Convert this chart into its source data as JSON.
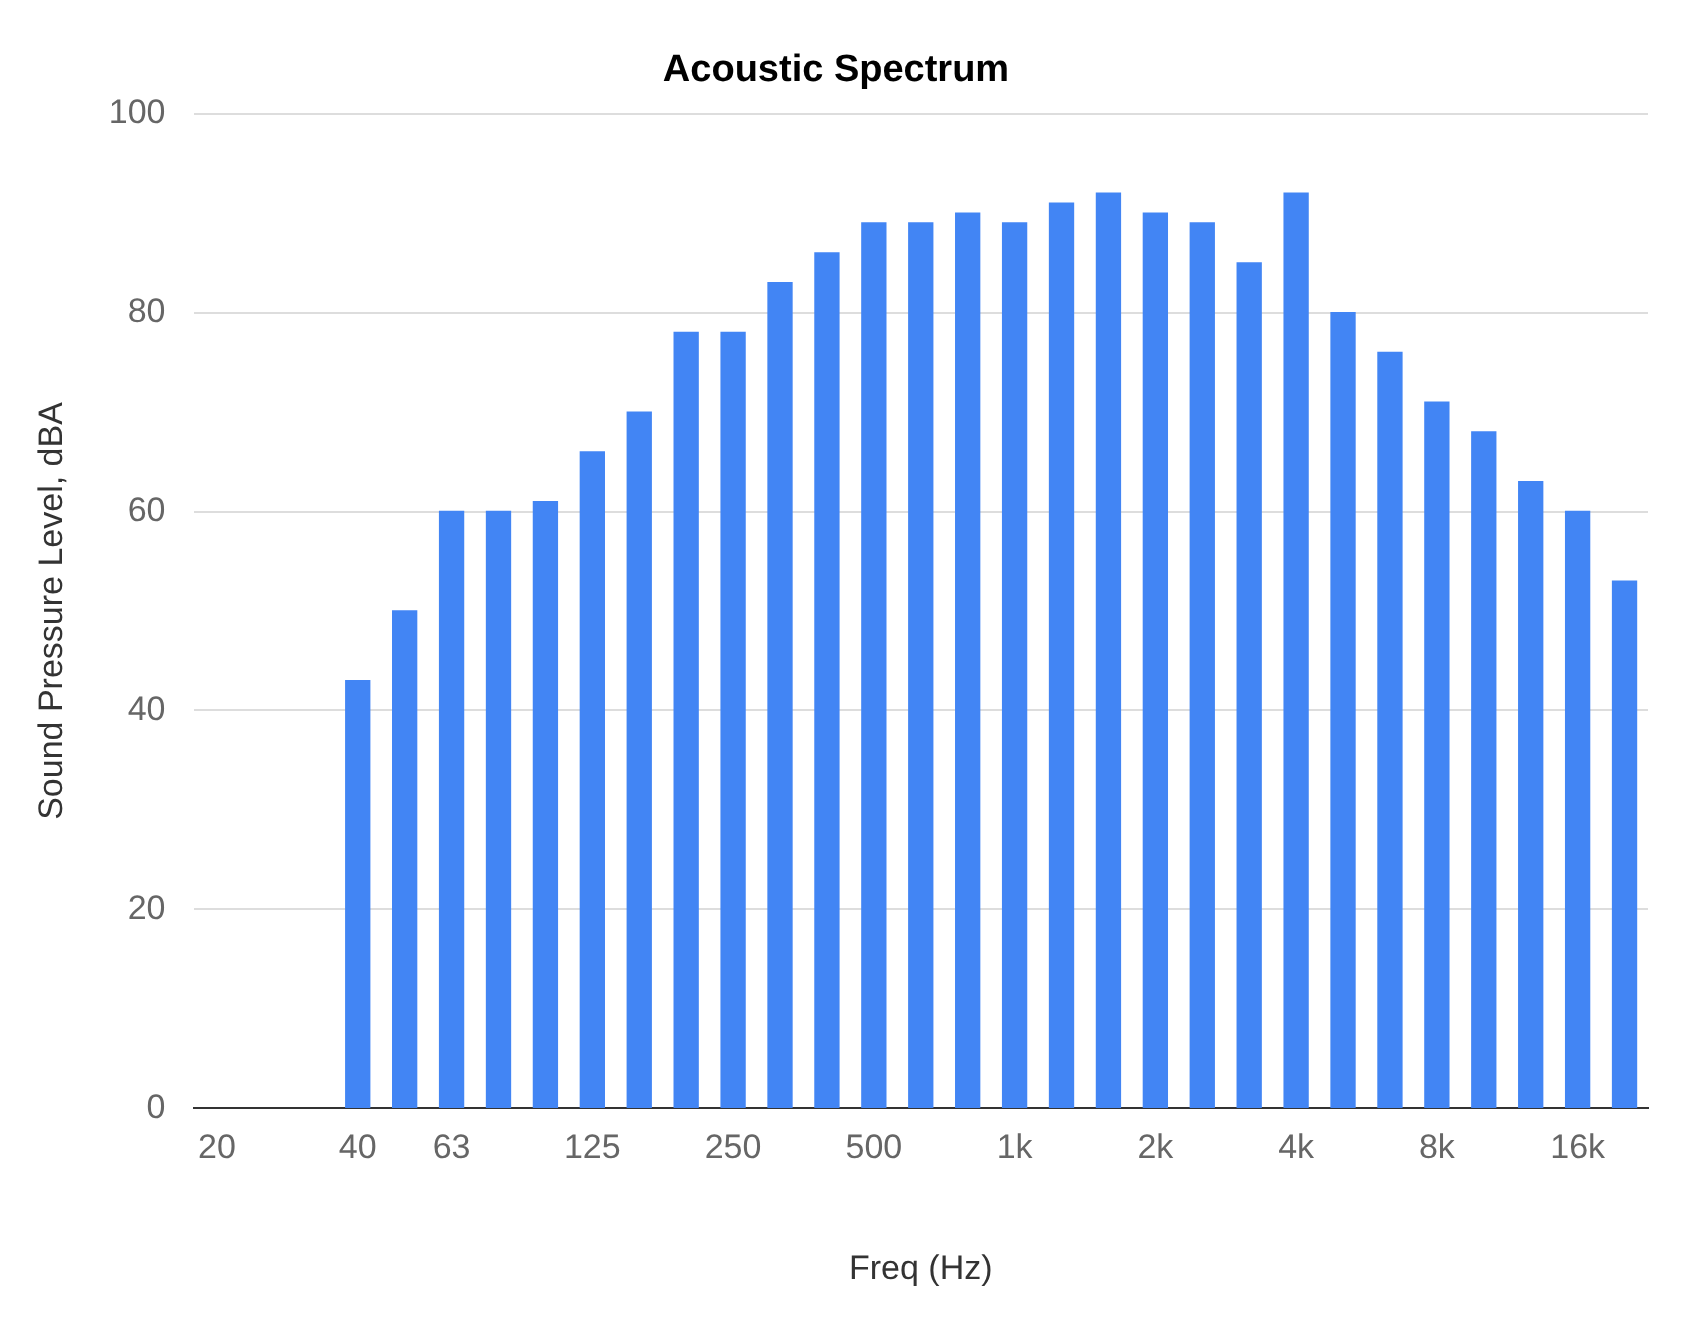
{
  "chart_data": {
    "type": "bar",
    "title": "Acoustic Spectrum",
    "xlabel": "Freq (Hz)",
    "ylabel": "Sound Pressure Level, dBA",
    "categories": [
      "20",
      null,
      null,
      "40",
      null,
      "63",
      null,
      null,
      "125",
      null,
      null,
      "250",
      null,
      null,
      "500",
      null,
      null,
      "1k",
      null,
      null,
      "2k",
      null,
      null,
      "4k",
      null,
      null,
      "8k",
      null,
      null,
      "16k",
      null
    ],
    "values": [
      null,
      null,
      null,
      43,
      50,
      60,
      60,
      61,
      66,
      70,
      78,
      78,
      83,
      86,
      89,
      89,
      90,
      89,
      91,
      92,
      90,
      89,
      85,
      92,
      80,
      76,
      71,
      68,
      63,
      60,
      53
    ],
    "color": "#4285f4",
    "ylim": [
      0,
      100
    ],
    "yticks": [
      0,
      20,
      40,
      60,
      80,
      100
    ],
    "grid": "y",
    "legend": false
  }
}
